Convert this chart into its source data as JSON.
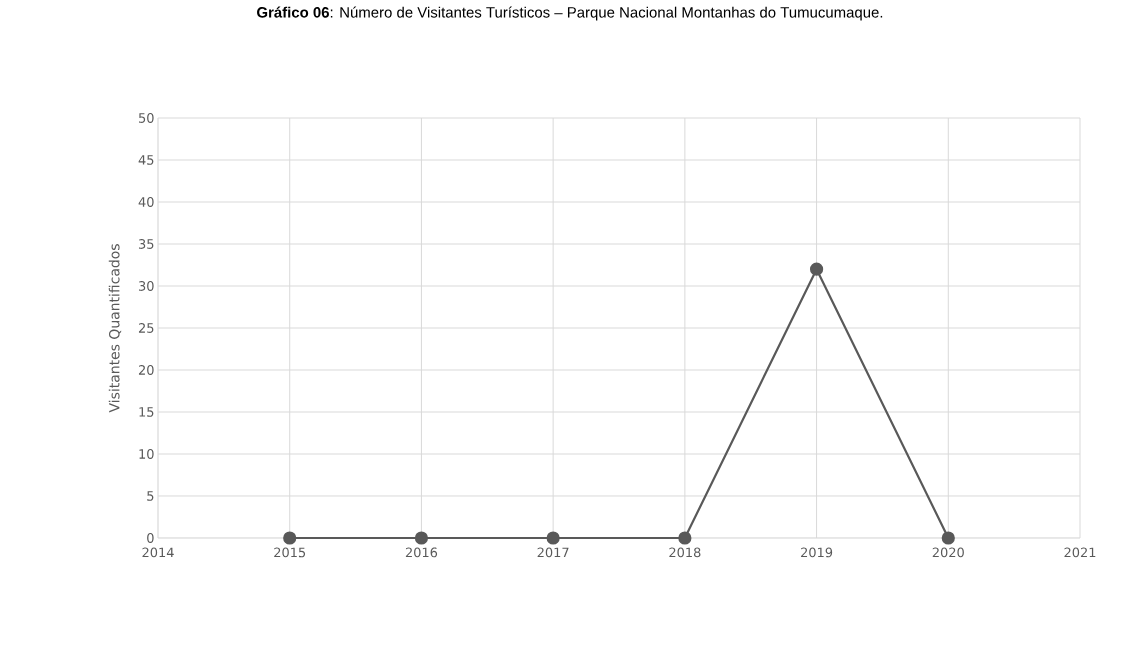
{
  "chart_data": {
    "type": "line",
    "title": "**Gráfico 06**: Número de Visitantes Turísticos – Parque Nacional Montanhas do Tumucumaque.",
    "ylabel": "Visitantes Quantificados",
    "x": [
      2015,
      2016,
      2017,
      2018,
      2019,
      2020
    ],
    "series": [
      {
        "color": "#595959",
        "values": [
          0,
          0,
          0,
          0,
          32,
          0
        ]
      }
    ],
    "xlim": [
      2014,
      2021
    ],
    "xticks": [
      2014,
      2015,
      2016,
      2017,
      2018,
      2019,
      2020,
      2021
    ],
    "ylim": [
      0,
      50
    ],
    "yticks": [
      0,
      5,
      10,
      15,
      20,
      25,
      30,
      35,
      40,
      45,
      50
    ],
    "grid": true,
    "marker": "circle",
    "line_style": "solid"
  }
}
